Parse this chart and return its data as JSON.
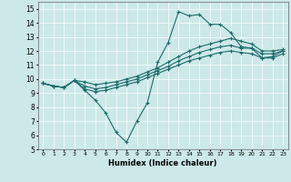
{
  "xlabel": "Humidex (Indice chaleur)",
  "xlim": [
    -0.5,
    23.5
  ],
  "ylim": [
    5,
    15.5
  ],
  "yticks": [
    5,
    6,
    7,
    8,
    9,
    10,
    11,
    12,
    13,
    14,
    15
  ],
  "xticks": [
    0,
    1,
    2,
    3,
    4,
    5,
    6,
    7,
    8,
    9,
    10,
    11,
    12,
    13,
    14,
    15,
    16,
    17,
    18,
    19,
    20,
    21,
    22,
    23
  ],
  "bg_color": "#cce8e8",
  "line_color": "#1a6b6b",
  "series": [
    {
      "x": [
        0,
        1,
        2,
        3,
        4,
        5,
        6,
        7,
        8,
        9,
        10,
        11,
        12,
        13,
        14,
        15,
        16,
        17,
        18,
        19,
        20,
        21,
        22,
        23
      ],
      "y": [
        9.7,
        9.5,
        9.4,
        9.9,
        9.2,
        8.5,
        7.6,
        6.2,
        5.5,
        7.0,
        8.3,
        11.2,
        12.6,
        14.8,
        14.5,
        14.6,
        13.9,
        13.9,
        13.3,
        12.3,
        12.2,
        11.5,
        11.6,
        12.0
      ]
    },
    {
      "x": [
        0,
        1,
        2,
        3,
        4,
        5,
        6,
        7,
        8,
        9,
        10,
        11,
        12,
        13,
        14,
        15,
        16,
        17,
        18,
        19,
        20,
        21,
        22,
        23
      ],
      "y": [
        9.7,
        9.5,
        9.4,
        9.9,
        9.8,
        9.6,
        9.7,
        9.8,
        10.0,
        10.2,
        10.5,
        10.8,
        11.2,
        11.6,
        12.0,
        12.3,
        12.5,
        12.7,
        12.9,
        12.7,
        12.5,
        12.0,
        12.0,
        12.1
      ]
    },
    {
      "x": [
        0,
        1,
        2,
        3,
        4,
        5,
        6,
        7,
        8,
        9,
        10,
        11,
        12,
        13,
        14,
        15,
        16,
        17,
        18,
        19,
        20,
        21,
        22,
        23
      ],
      "y": [
        9.7,
        9.5,
        9.4,
        9.9,
        9.5,
        9.3,
        9.4,
        9.6,
        9.8,
        10.0,
        10.3,
        10.6,
        10.9,
        11.3,
        11.6,
        11.9,
        12.1,
        12.3,
        12.4,
        12.2,
        12.2,
        11.8,
        11.8,
        12.0
      ]
    },
    {
      "x": [
        0,
        1,
        2,
        3,
        4,
        5,
        6,
        7,
        8,
        9,
        10,
        11,
        12,
        13,
        14,
        15,
        16,
        17,
        18,
        19,
        20,
        21,
        22,
        23
      ],
      "y": [
        9.7,
        9.5,
        9.4,
        9.9,
        9.3,
        9.1,
        9.2,
        9.4,
        9.6,
        9.8,
        10.1,
        10.4,
        10.7,
        11.0,
        11.3,
        11.5,
        11.7,
        11.9,
        12.0,
        11.9,
        11.8,
        11.5,
        11.5,
        11.8
      ]
    }
  ]
}
